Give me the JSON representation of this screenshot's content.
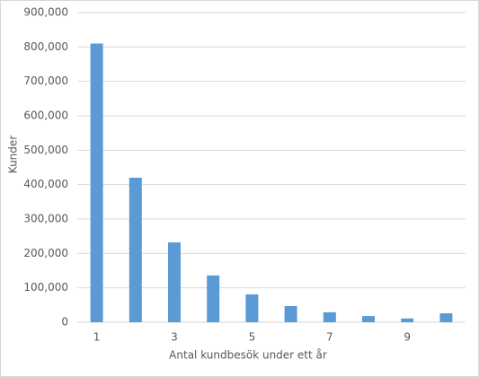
{
  "chart_data": {
    "type": "bar",
    "xlabel": "Antal kundbesök  under ett år",
    "ylabel": "Kunder",
    "categories": [
      "1",
      null,
      "3",
      null,
      "5",
      null,
      "7",
      null,
      "9",
      null
    ],
    "values": [
      810000,
      420000,
      232000,
      136000,
      81000,
      47000,
      29000,
      18000,
      11000,
      26000
    ],
    "color": "#5b9bd5",
    "ylim": [
      0,
      900000
    ],
    "yticks": [
      0,
      {
        "value": 100000,
        "label": "100,000"
      },
      {
        "value": 200000,
        "label": "200,000"
      },
      {
        "value": 300000,
        "label": "300,000"
      },
      {
        "value": 400000,
        "label": "400,000"
      },
      {
        "value": 500000,
        "label": "500,000"
      },
      {
        "value": 600000,
        "label": "600,000"
      },
      {
        "value": 700000,
        "label": "700,000"
      },
      {
        "value": 800000,
        "label": "800,000"
      },
      {
        "value": 900000,
        "label": "900,000"
      }
    ],
    "grid": true
  }
}
